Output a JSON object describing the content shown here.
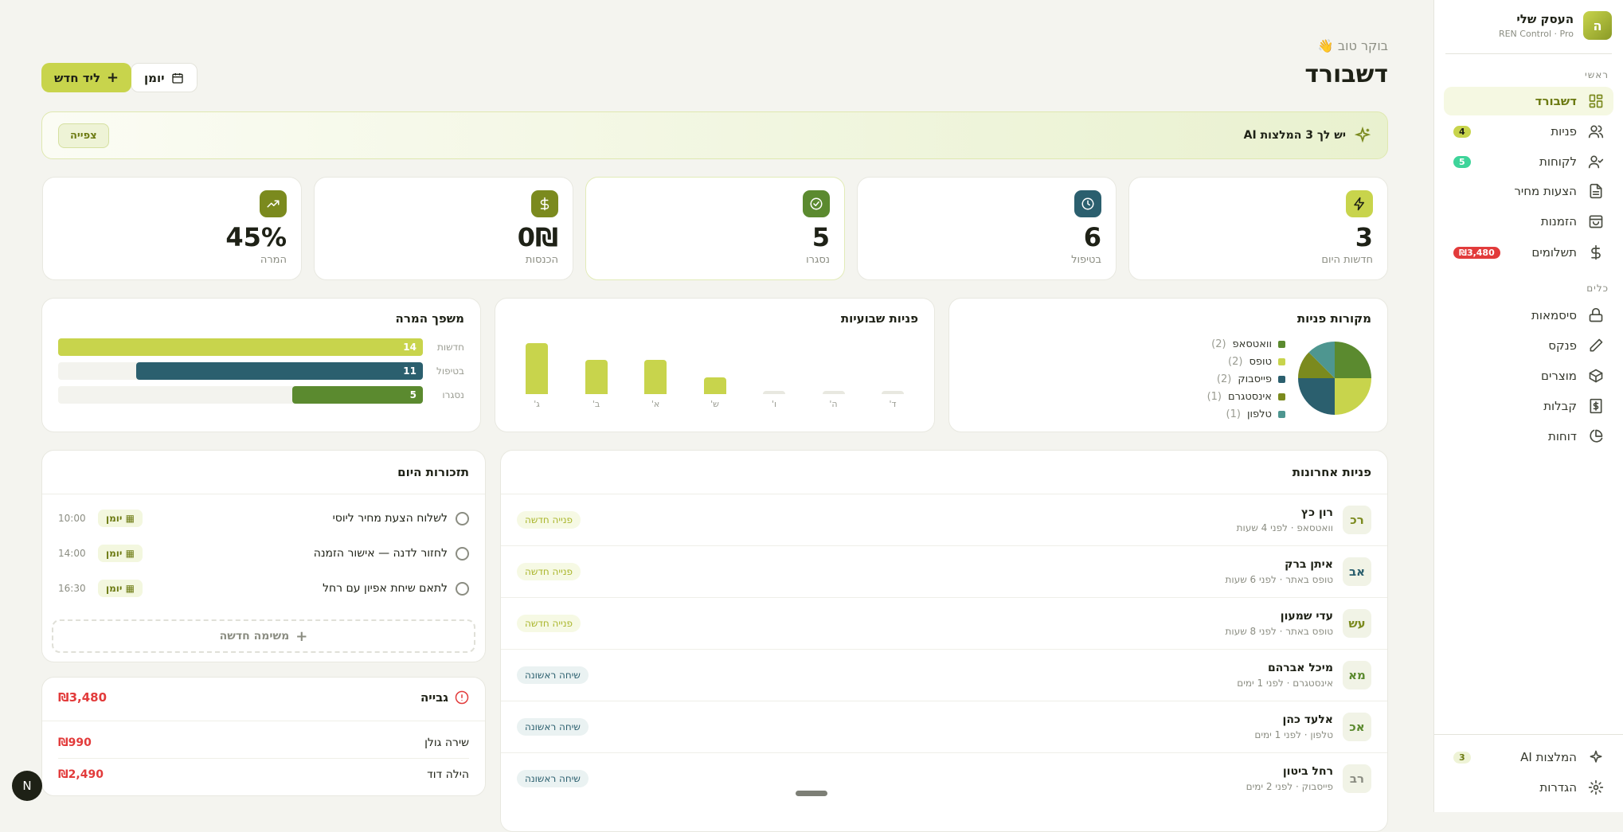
{
  "colors": {
    "lime": "#c8d44c",
    "olive": "#7b8a1e",
    "green": "#5b8a2f",
    "teal": "#2b5f6e",
    "teal_light": "#4e9690",
    "red": "#e23b3b",
    "mint": "#3ed49a"
  },
  "sidebar": {
    "brand": {
      "logo_letter": "ה",
      "name": "העסק שלי",
      "subtitle": "REN Control · Pro"
    },
    "section_main": "ראשי",
    "main_items": [
      {
        "label": "דשבורד",
        "icon": "dashboard-icon",
        "active": true
      },
      {
        "label": "פניות",
        "icon": "users-icon",
        "badge": "4"
      },
      {
        "label": "לקוחות",
        "icon": "user-check-icon",
        "badge": "5"
      },
      {
        "label": "הצעות מחיר",
        "icon": "file-text-icon"
      },
      {
        "label": "הזמנות",
        "icon": "shopping-bag-icon"
      },
      {
        "label": "תשלומים",
        "icon": "dollar-icon",
        "badge": "₪3,480"
      }
    ],
    "section_tools": "כלים",
    "tool_items": [
      {
        "label": "סיסמאות",
        "icon": "lock-icon"
      },
      {
        "label": "פנקס",
        "icon": "pencil-icon"
      },
      {
        "label": "מוצרים",
        "icon": "package-icon"
      },
      {
        "label": "קבלות",
        "icon": "receipt-icon"
      },
      {
        "label": "דוחות",
        "icon": "pie-chart-icon"
      }
    ],
    "bottom_items": [
      {
        "label": "המלצות AI",
        "icon": "sparkles-icon",
        "badge": "3"
      },
      {
        "label": "הגדרות",
        "icon": "gear-icon"
      }
    ]
  },
  "header": {
    "greeting": "בוקר טוב 👋",
    "title": "דשבורד",
    "calendar_button": "יומן",
    "new_lead_button": "ליד חדש"
  },
  "banner": {
    "text": "יש לך 3 המלצות AI",
    "button": "צפייה"
  },
  "stats": [
    {
      "value": "3",
      "label": "חדשות היום",
      "icon": "zap-icon",
      "color": "#c8d44c"
    },
    {
      "value": "6",
      "label": "בטיפול",
      "icon": "clock-icon",
      "color": "#2b5f6e"
    },
    {
      "value": "5",
      "label": "נסגרו",
      "icon": "check-circle-icon",
      "color": "#5b8a2f"
    },
    {
      "value": "0₪",
      "label": "הכנסות",
      "icon": "dollar-icon",
      "color": "#7b8a1e"
    },
    {
      "value": "45%",
      "label": "המרה",
      "icon": "trending-up-icon",
      "color": "#7b8a1e"
    }
  ],
  "chart_data": [
    {
      "type": "pie",
      "title": "מקורות פניות",
      "categories": [
        "וואטסאפ",
        "טופס",
        "פייסבוק",
        "אינסטגרם",
        "טלפון"
      ],
      "values": [
        2,
        2,
        2,
        1,
        1
      ],
      "colors": [
        "#5b8a2f",
        "#c8d44c",
        "#2b5f6e",
        "#7b8a1e",
        "#4e9690"
      ],
      "legend": "left"
    },
    {
      "type": "bar",
      "title": "פניות שבועיות",
      "categories": [
        "ד'",
        "ה'",
        "ו'",
        "ש'",
        "א'",
        "ב'",
        "ג'"
      ],
      "values": [
        0,
        0,
        0,
        1,
        2,
        2,
        3
      ]
    },
    {
      "type": "bar",
      "title": "משפך המרה",
      "orientation": "horizontal",
      "categories": [
        "חדשות",
        "בטיפול",
        "נסגרו"
      ],
      "values": [
        14,
        11,
        5
      ],
      "colors": [
        "#c8d44c",
        "#2b5f6e",
        "#5b8a2f"
      ],
      "max": 14
    }
  ],
  "recent": {
    "title": "פניות אחרונות",
    "rows": [
      {
        "initials": "רכ",
        "name": "רון כץ",
        "meta": "וואטסאפ · לפני 4 שעות",
        "status": "פנייה חדשה",
        "kind": "new",
        "color": "#7b8a1e"
      },
      {
        "initials": "אב",
        "name": "איתן ברק",
        "meta": "טופס באתר · לפני 6 שעות",
        "status": "פנייה חדשה",
        "kind": "new",
        "color": "#2b5f6e"
      },
      {
        "initials": "עש",
        "name": "עדי שמעון",
        "meta": "טופס באתר · לפני 8 שעות",
        "status": "פנייה חדשה",
        "kind": "new",
        "color": "#7b8a1e"
      },
      {
        "initials": "מא",
        "name": "מיכל אברהם",
        "meta": "אינסטגרם · לפני 1 ימים",
        "status": "שיחה ראשונה",
        "kind": "first",
        "color": "#5b8a2f"
      },
      {
        "initials": "אכ",
        "name": "אלעד כהן",
        "meta": "טלפון · לפני 1 ימים",
        "status": "שיחה ראשונה",
        "kind": "first",
        "color": "#5b8a2f"
      },
      {
        "initials": "רב",
        "name": "רחל ביטון",
        "meta": "פייסבוק · לפני 2 ימים",
        "status": "שיחה ראשונה",
        "kind": "first",
        "color": "#8b8d82"
      }
    ]
  },
  "reminders": {
    "title": "תזכורות היום",
    "items": [
      {
        "text": "לשלוח הצעת מחיר ליוסי",
        "tag": "יומן",
        "time": "10:00"
      },
      {
        "text": "לחזור לדנה — אישור הזמנה",
        "tag": "יומן",
        "time": "14:00"
      },
      {
        "text": "לתאם שיחת אפיון עם רחל",
        "tag": "יומן",
        "time": "16:30"
      }
    ],
    "add_button": "משימה חדשה"
  },
  "collection": {
    "title": "גבייה",
    "total": "₪3,480",
    "items": [
      {
        "name": "שירה גולן",
        "amount": "₪990"
      },
      {
        "name": "הילה דוד",
        "amount": "₪2,490"
      }
    ]
  },
  "dev_badge": "N"
}
